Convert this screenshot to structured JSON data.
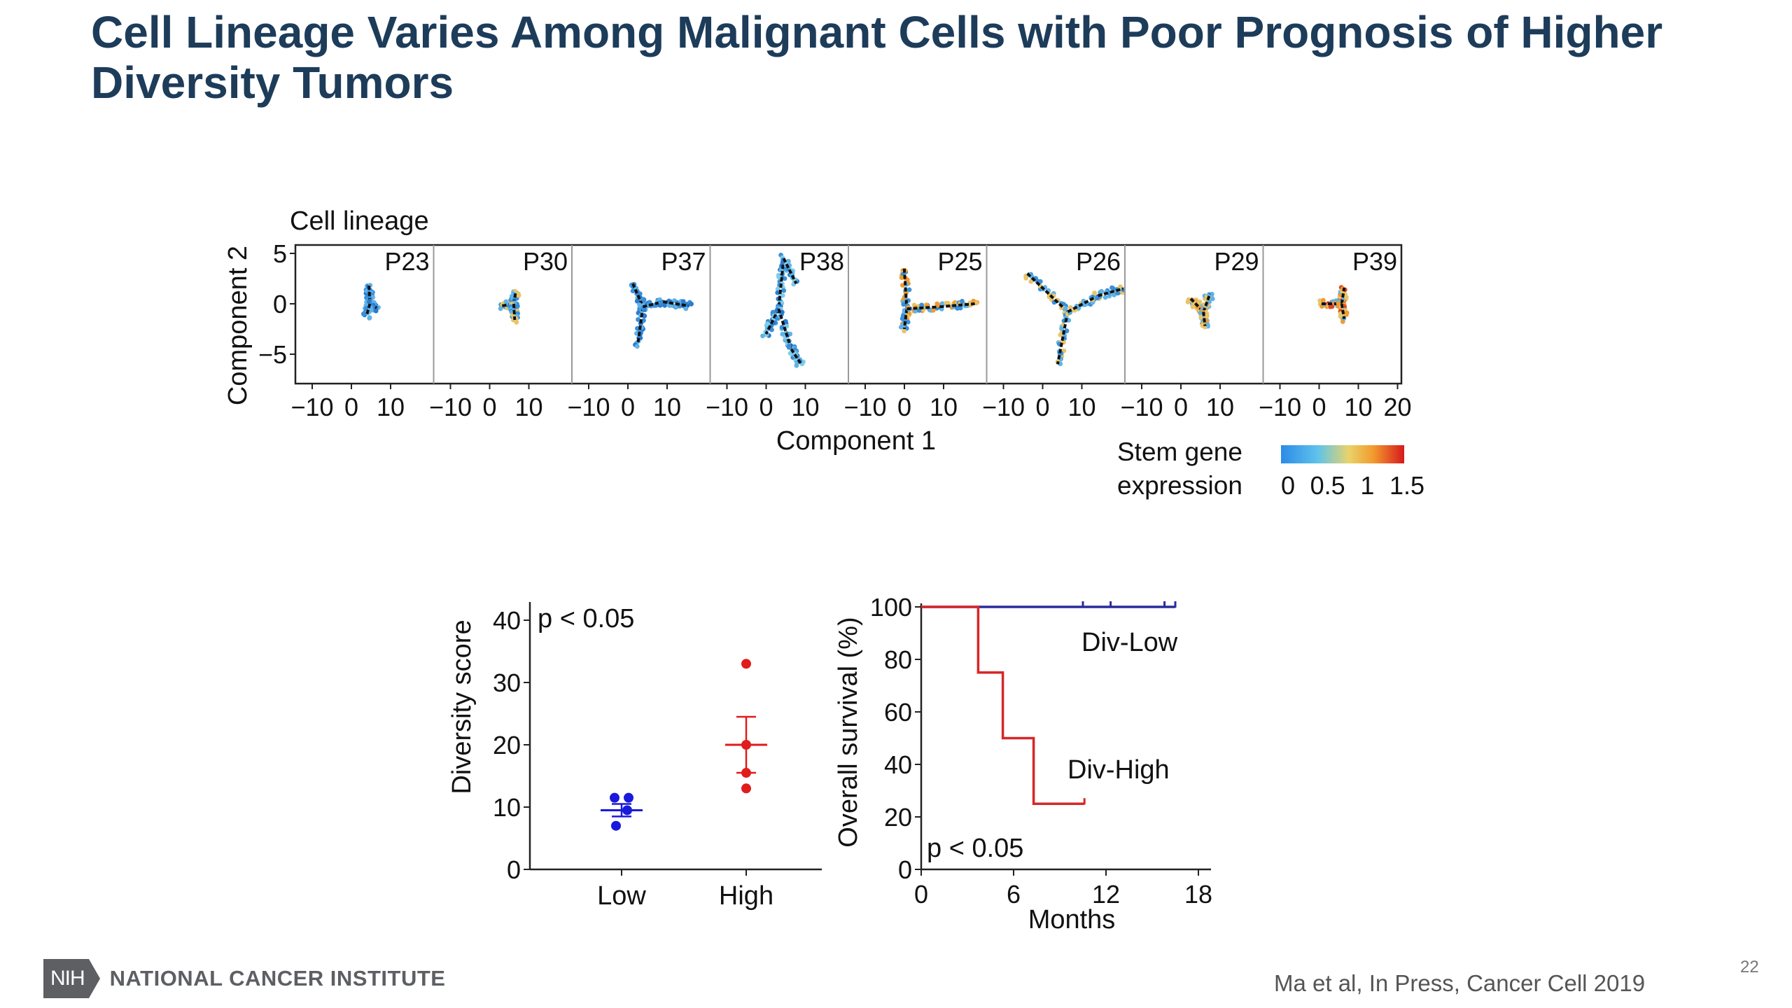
{
  "slide": {
    "title": "Cell Lineage Varies Among Malignant Cells with Poor Prognosis of Higher Diversity Tumors",
    "citation": "Ma et al, In Press, Cancer Cell 2019",
    "page_number": "22",
    "logo": {
      "mark": "NIH",
      "name": "NATIONAL CANCER INSTITUTE"
    }
  },
  "colors": {
    "title": "#1d3c5a",
    "low": "#1a1adb",
    "high": "#e01c1c",
    "div_low_line": "#2b2b9e",
    "div_high_line": "#d62728",
    "cell_low": "#3a8fd8",
    "cell_high": "#e8a23a"
  },
  "chart_data": [
    {
      "type": "scatter",
      "title": "Cell lineage",
      "xlabel": "Component 1",
      "ylabel": "Component 2",
      "panels": [
        "P23",
        "P30",
        "P37",
        "P38",
        "P25",
        "P26",
        "P29",
        "P39"
      ],
      "x_ticks": [
        "−10",
        "0",
        "10"
      ],
      "last_panel_x_ticks": [
        "−10",
        "0",
        "10",
        "20"
      ],
      "y_ticks": [
        "5",
        "0",
        "−5"
      ],
      "colorbar": {
        "label_line1": "Stem gene",
        "label_line2": "expression",
        "ticks": [
          "0",
          "0.5",
          "1",
          "1.5"
        ],
        "range": [
          0,
          1.5
        ],
        "colors": [
          "#2b8be8",
          "#5fc3ea",
          "#e9d36a",
          "#f29a2e",
          "#d7191c"
        ]
      }
    },
    {
      "type": "scatter",
      "ylabel": "Diversity score",
      "ylim": [
        0,
        40
      ],
      "y_ticks": [
        "0",
        "10",
        "20",
        "30",
        "40"
      ],
      "categories": [
        "Low",
        "High"
      ],
      "annotation": "p < 0.05",
      "series": [
        {
          "category": "Low",
          "values": [
            11.5,
            11.5,
            9.5,
            7
          ],
          "mean": 9.5,
          "sem_low": 8.5,
          "sem_high": 10.5
        },
        {
          "category": "High",
          "values": [
            33,
            20,
            15.5,
            13
          ],
          "mean": 20,
          "sem_low": 15.5,
          "sem_high": 24.5
        }
      ]
    },
    {
      "type": "line",
      "xlabel": "Months",
      "ylabel": "Overall survival (%)",
      "xlim": [
        0,
        18
      ],
      "ylim": [
        0,
        100
      ],
      "x_ticks": [
        "0",
        "6",
        "12",
        "18"
      ],
      "y_ticks": [
        "0",
        "20",
        "40",
        "60",
        "80",
        "100"
      ],
      "annotation": "p < 0.05",
      "series": [
        {
          "name": "Div-Low",
          "steps": [
            [
              0,
              100
            ],
            [
              16.5,
              100
            ]
          ],
          "censor_x": [
            10.5,
            12.3,
            15.8,
            16.5
          ]
        },
        {
          "name": "Div-High",
          "steps": [
            [
              0,
              100
            ],
            [
              3.7,
              100
            ],
            [
              3.7,
              75
            ],
            [
              5.3,
              75
            ],
            [
              5.3,
              50
            ],
            [
              7.3,
              50
            ],
            [
              7.3,
              25
            ],
            [
              10.6,
              25
            ]
          ],
          "censor_x": [
            10.6
          ]
        }
      ]
    }
  ]
}
